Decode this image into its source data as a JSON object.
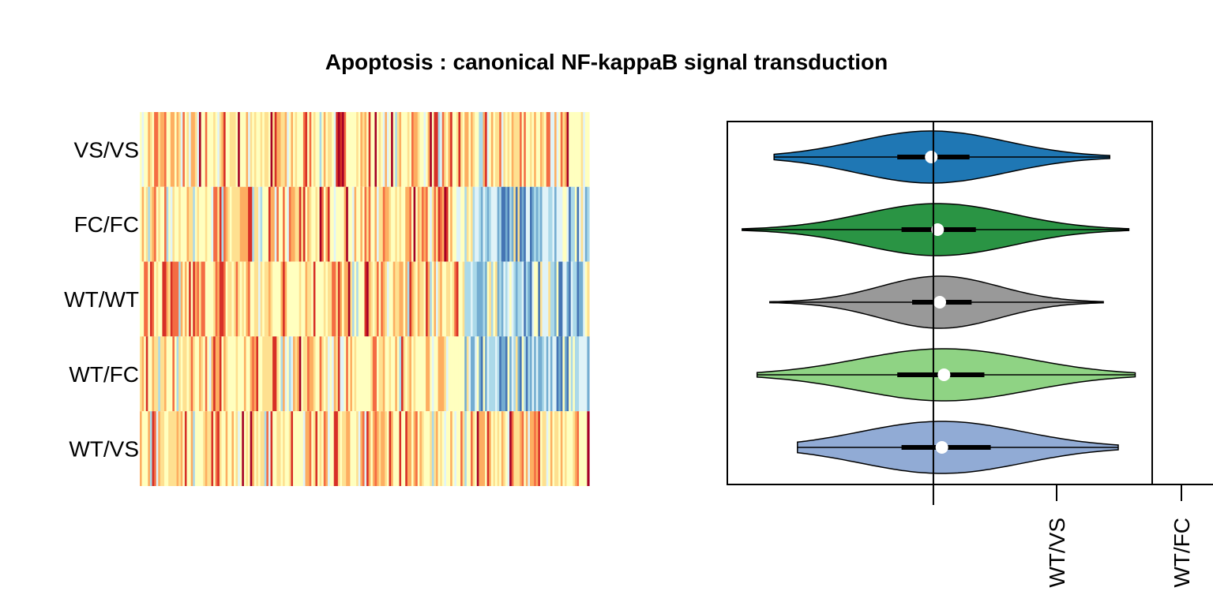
{
  "title": "Apoptosis : canonical NF-kappaB signal transduction",
  "chart_data": [
    {
      "type": "heatmap",
      "rows": [
        "VS/VS",
        "FC/FC",
        "WT/WT",
        "WT/FC",
        "WT/VS"
      ],
      "palette": [
        "#a50026",
        "#d73027",
        "#f46d43",
        "#fdae61",
        "#fee090",
        "#ffffbf",
        "#e0f3f8",
        "#abd9e9",
        "#74add1",
        "#4575b4"
      ],
      "columns_note": "",
      "cold_block_fraction": [
        0.0,
        0.72,
        0.72,
        0.72,
        0.0
      ]
    },
    {
      "type": "violin",
      "groups": [
        {
          "name": "VS/VS",
          "color": "#1f77b4",
          "min": -0.75,
          "q1": -0.17,
          "median": -0.01,
          "q3": 0.17,
          "max": 0.83,
          "spread": 0.35
        },
        {
          "name": "FC/FC",
          "color": "#2a9444",
          "min": -0.9,
          "q1": -0.15,
          "median": 0.02,
          "q3": 0.2,
          "max": 0.92,
          "spread": 0.35
        },
        {
          "name": "WT/WT",
          "color": "#999999",
          "min": -0.77,
          "q1": -0.1,
          "median": 0.03,
          "q3": 0.18,
          "max": 0.8,
          "spread": 0.28
        },
        {
          "name": "WT/FC",
          "color": "#8fd384",
          "min": -0.83,
          "q1": -0.17,
          "median": 0.05,
          "q3": 0.24,
          "max": 0.95,
          "spread": 0.4
        },
        {
          "name": "WT/VS",
          "color": "#91abd5",
          "min": -0.64,
          "q1": -0.15,
          "median": 0.04,
          "q3": 0.27,
          "max": 0.87,
          "spread": 0.38
        }
      ],
      "xlim": [
        -0.97,
        1.03
      ],
      "zero_line": 0,
      "xtick_labels": [
        "WT/VS",
        "WT/FC"
      ]
    }
  ]
}
